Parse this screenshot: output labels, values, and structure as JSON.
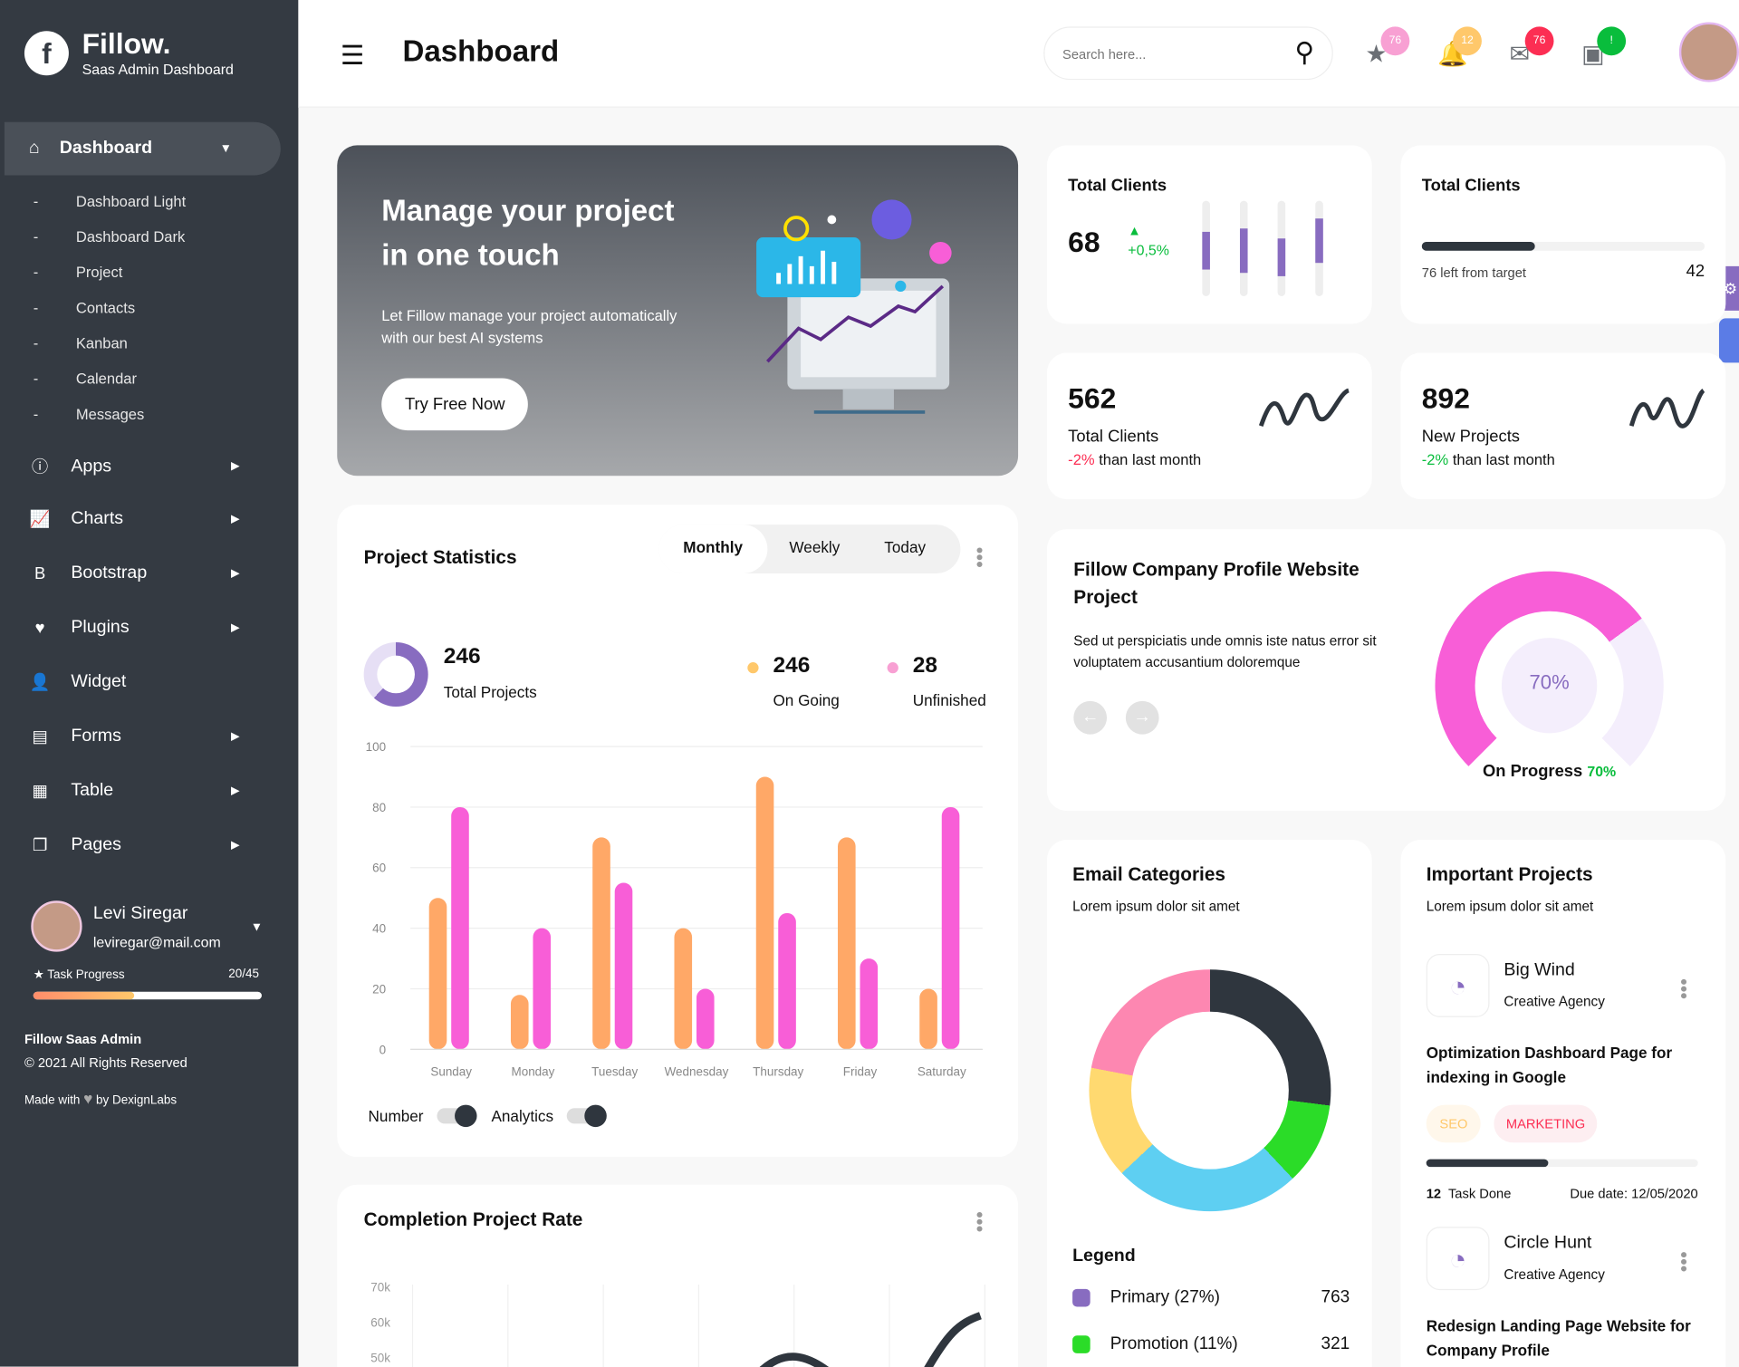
{
  "brand": {
    "name": "Fillow.",
    "tagline": "Saas Admin Dashboard"
  },
  "sidebar": {
    "active": "Dashboard",
    "sub_items": [
      "Dashboard Light",
      "Dashboard Dark",
      "Project",
      "Contacts",
      "Kanban",
      "Calendar",
      "Messages"
    ],
    "items": [
      {
        "label": "Apps",
        "icon": "info-icon"
      },
      {
        "label": "Charts",
        "icon": "chart-icon"
      },
      {
        "label": "Bootstrap",
        "icon": "bootstrap-icon"
      },
      {
        "label": "Plugins",
        "icon": "heart-icon"
      },
      {
        "label": "Widget",
        "icon": "user-check-icon"
      },
      {
        "label": "Forms",
        "icon": "file-icon"
      },
      {
        "label": "Table",
        "icon": "table-icon"
      },
      {
        "label": "Pages",
        "icon": "pages-icon"
      }
    ],
    "user": {
      "name": "Levi Siregar",
      "email": "leviregar@mail.com",
      "task_label": "Task Progress",
      "task_value": "20/45",
      "progress": 0.44
    },
    "footer": {
      "title": "Fillow Saas Admin",
      "copy": "© 2021 All Rights Reserved",
      "made_with": "Made with",
      "by": "by DexignLabs"
    }
  },
  "header": {
    "title": "Dashboard",
    "search_placeholder": "Search here...",
    "badges": [
      {
        "icon": "star-icon",
        "count": "76",
        "color": "#f8a0d3"
      },
      {
        "icon": "bell-icon",
        "count": "12",
        "color": "#ffc86b"
      },
      {
        "icon": "mail-icon",
        "count": "76",
        "color": "#fc2e53"
      },
      {
        "icon": "calendar-icon",
        "count": "!",
        "color": "#09bd3c"
      }
    ]
  },
  "hero": {
    "title1": "Manage your project",
    "title2": "in one touch",
    "text1": "Let Fillow manage your project automatically",
    "text2": "with our best AI systems",
    "cta": "Try Free Now"
  },
  "stats": {
    "c1": {
      "title": "Total Clients",
      "value": "68",
      "change": "+0,5%",
      "bars": [
        0.6,
        0.65,
        0.5,
        0.8
      ]
    },
    "c2": {
      "title": "Total Clients",
      "left": "76 left from target",
      "value": "42",
      "progress": 0.4
    },
    "c3": {
      "value": "562",
      "label": "Total Clients",
      "change": "-2%",
      "suffix": "than last month"
    },
    "c4": {
      "value": "892",
      "label": "New Projects",
      "change": "-2%",
      "suffix": "than last month"
    }
  },
  "project_stats": {
    "title": "Project Statistics",
    "tabs": [
      "Monthly",
      "Weekly",
      "Today"
    ],
    "active_tab": "Monthly",
    "total": "246",
    "total_label": "Total Projects",
    "ongoing": "246",
    "ongoing_label": "On Going",
    "unfinished": "28",
    "unfinished_label": "Unfinished",
    "toggles": [
      "Number",
      "Analytics"
    ]
  },
  "chart_data": [
    {
      "type": "bar",
      "categories": [
        "Sunday",
        "Monday",
        "Tuesday",
        "Wednesday",
        "Thursday",
        "Friday",
        "Saturday"
      ],
      "series": [
        {
          "values": [
            50,
            18,
            70,
            40,
            90,
            70,
            20
          ],
          "color": "#ffa867"
        },
        {
          "values": [
            80,
            40,
            55,
            20,
            45,
            30,
            80
          ],
          "color": "#f85ed7"
        }
      ],
      "ylim": [
        0,
        100
      ],
      "yticks": [
        "0",
        "20",
        "40",
        "60",
        "80",
        "100"
      ],
      "grid": true
    },
    {
      "type": "line",
      "yticks": [
        "70k",
        "60k",
        "50k"
      ],
      "series": [
        {
          "color": "#2f363e"
        }
      ]
    }
  ],
  "profile": {
    "title": "Fillow Company Profile Website Project",
    "text": "Sed ut perspiciatis unde omnis iste natus error sit voluptatem accusantium doloremque",
    "percent": "70%",
    "progress_label": "On Progress",
    "progress_value": "70%",
    "progress": 0.7
  },
  "email": {
    "title": "Email Categories",
    "subtitle": "Lorem ipsum dolor sit amet",
    "legend_title": "Legend",
    "segments": [
      {
        "share": 27,
        "color": "#2f363e"
      },
      {
        "share": 11,
        "color": "#2bdc28"
      },
      {
        "share": 25,
        "color": "#5ecff2"
      },
      {
        "share": 15,
        "color": "#ffd970"
      },
      {
        "share": 22,
        "color": "#fd87b1"
      }
    ],
    "legend": [
      {
        "label": "Primary (27%)",
        "value": "763",
        "color": "#886cc0"
      },
      {
        "label": "Promotion (11%)",
        "value": "321",
        "color": "#2bdc28"
      }
    ]
  },
  "important": {
    "title": "Important Projects",
    "subtitle": "Lorem ipsum dolor sit amet",
    "projects": [
      {
        "name": "Big Wind",
        "agency": "Creative Agency",
        "task": "Optimization Dashboard Page for indexing in Google",
        "tags": [
          "SEO",
          "MARKETING"
        ],
        "done": "12",
        "done_label": "Task Done",
        "due": "Due date: 12/05/2020",
        "progress": 0.45
      },
      {
        "name": "Circle Hunt",
        "agency": "Creative Agency",
        "task": "Redesign Landing Page Website for Company Profile"
      }
    ]
  },
  "completion": {
    "title": "Completion Project Rate"
  }
}
